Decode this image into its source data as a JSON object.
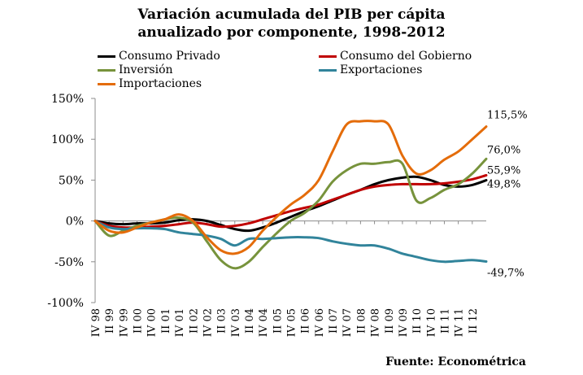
{
  "chart_data": {
    "type": "line",
    "title": "Variación acumulada del PIB per cápita",
    "subtitle": "anualizado por componente, 1998-2012",
    "source": "Fuente: Econométrica",
    "ylim": [
      -100,
      150
    ],
    "yticks": [
      "150%",
      "100%",
      "50%",
      "0%",
      "-50%",
      "-100%"
    ],
    "ytick_values": [
      150,
      100,
      50,
      0,
      -50,
      -100
    ],
    "xlim": [
      0,
      56
    ],
    "xticks": [
      "IV 98",
      "II 99",
      "IV 99",
      "II 00",
      "IV 00",
      "II 01",
      "IV 01",
      "II 02",
      "IV 02",
      "II 03",
      "IV 03",
      "II 04",
      "IV 04",
      "II 05",
      "IV 05",
      "II 06",
      "IV 06",
      "II 07",
      "IV 07",
      "II 08",
      "IV 08",
      "II 09",
      "IV 09",
      "II 10",
      "IV 10",
      "II 11",
      "IV 11",
      "II 12"
    ],
    "grid": false,
    "legend_placement": "top",
    "series": [
      {
        "name": "Consumo Privado",
        "color": "#000000",
        "x": [
          0,
          2,
          4,
          6,
          8,
          10,
          12,
          14,
          16,
          18,
          20,
          22,
          24,
          26,
          28,
          30,
          32,
          34,
          36,
          38,
          40,
          42,
          44,
          46,
          48,
          50,
          52,
          54,
          56
        ],
        "values": [
          0,
          -3,
          -4,
          -3,
          -3,
          -2,
          1,
          2,
          0,
          -5,
          -10,
          -12,
          -8,
          -2,
          5,
          12,
          18,
          25,
          32,
          38,
          45,
          50,
          53,
          54,
          50,
          44,
          42,
          44,
          49.8
        ],
        "end_label": "49,8%"
      },
      {
        "name": "Consumo del Gobierno",
        "color": "#c00000",
        "x": [
          0,
          2,
          4,
          6,
          8,
          10,
          12,
          14,
          16,
          18,
          20,
          22,
          24,
          26,
          28,
          30,
          32,
          34,
          36,
          38,
          40,
          42,
          44,
          46,
          48,
          50,
          52,
          54,
          56
        ],
        "values": [
          0,
          -6,
          -8,
          -8,
          -7,
          -6,
          -4,
          -2,
          -4,
          -7,
          -6,
          -3,
          2,
          7,
          12,
          16,
          20,
          26,
          32,
          38,
          42,
          44,
          45,
          45,
          45,
          46,
          48,
          51,
          55.9
        ],
        "end_label": "55,9%"
      },
      {
        "name": "Inversión",
        "color": "#77933c",
        "x": [
          0,
          2,
          4,
          6,
          8,
          10,
          12,
          14,
          16,
          18,
          20,
          22,
          24,
          26,
          28,
          30,
          32,
          34,
          36,
          38,
          40,
          42,
          44,
          46,
          48,
          50,
          52,
          54,
          56
        ],
        "values": [
          0,
          -18,
          -12,
          -6,
          -2,
          2,
          4,
          -2,
          -25,
          -48,
          -58,
          -50,
          -32,
          -15,
          0,
          10,
          25,
          48,
          62,
          70,
          70,
          72,
          70,
          25,
          28,
          38,
          45,
          58,
          76
        ],
        "end_label": "76,0%"
      },
      {
        "name": "Exportaciones",
        "color": "#31849b",
        "x": [
          0,
          2,
          4,
          6,
          8,
          10,
          12,
          14,
          16,
          18,
          20,
          22,
          24,
          26,
          28,
          30,
          32,
          34,
          36,
          38,
          40,
          42,
          44,
          46,
          48,
          50,
          52,
          54,
          56
        ],
        "values": [
          0,
          -8,
          -10,
          -9,
          -9,
          -10,
          -14,
          -16,
          -18,
          -22,
          -30,
          -22,
          -22,
          -21,
          -20,
          -20,
          -21,
          -25,
          -28,
          -30,
          -30,
          -34,
          -40,
          -44,
          -48,
          -50,
          -49,
          -48,
          -49.7
        ],
        "end_label": "-49,7%"
      },
      {
        "name": "Importaciones",
        "color": "#e46c0a",
        "x": [
          0,
          2,
          4,
          6,
          8,
          10,
          12,
          14,
          16,
          18,
          20,
          22,
          24,
          26,
          28,
          30,
          32,
          34,
          36,
          38,
          40,
          42,
          44,
          46,
          48,
          50,
          52,
          54,
          56
        ],
        "values": [
          0,
          -12,
          -14,
          -8,
          -2,
          2,
          8,
          0,
          -20,
          -36,
          -40,
          -32,
          -12,
          5,
          20,
          32,
          50,
          85,
          118,
          122,
          122,
          118,
          80,
          58,
          62,
          75,
          85,
          100,
          115.5
        ],
        "end_label": "115,5%"
      }
    ]
  }
}
